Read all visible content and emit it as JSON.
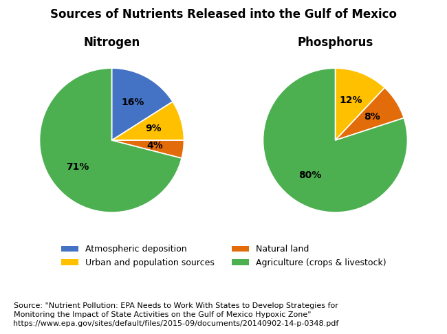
{
  "title": "Sources of Nutrients Released into the Gulf of Mexico",
  "annotations": [
    "Source: \"Nutrient Pollution: EPA Needs to Work With States to Develop Strategies for\nMonitoring the Impact of State Activities on the Gulf of Mexico Hypoxic Zone\"\nhttps://www.epa.gov/sites/default/files/2015-09/documents/20140902-14-p-0348.pdf"
  ],
  "legend": "upper center",
  "chart_data": [
    {
      "type": "pie",
      "title": "Nitrogen",
      "categories": [
        "Atmospheric deposition",
        "Urban and population sources",
        "Natural land",
        "Agriculture (crops & livestock)"
      ],
      "values": [
        16,
        9,
        4,
        71
      ],
      "value_labels": [
        "16%",
        "9%",
        "4%",
        "71%"
      ],
      "colors": [
        "#4472C4",
        "#FFC000",
        "#E36C0A",
        "#4CAF50"
      ],
      "data_labels": true
    },
    {
      "type": "pie",
      "title": "Phosphorus",
      "categories": [
        "Urban and population sources",
        "Natural land",
        "Agriculture (crops & livestock)"
      ],
      "values": [
        12,
        8,
        80
      ],
      "value_labels": [
        "12%",
        "8%",
        "80%"
      ],
      "colors": [
        "#FFC000",
        "#E36C0A",
        "#4CAF50"
      ],
      "data_labels": true
    }
  ]
}
